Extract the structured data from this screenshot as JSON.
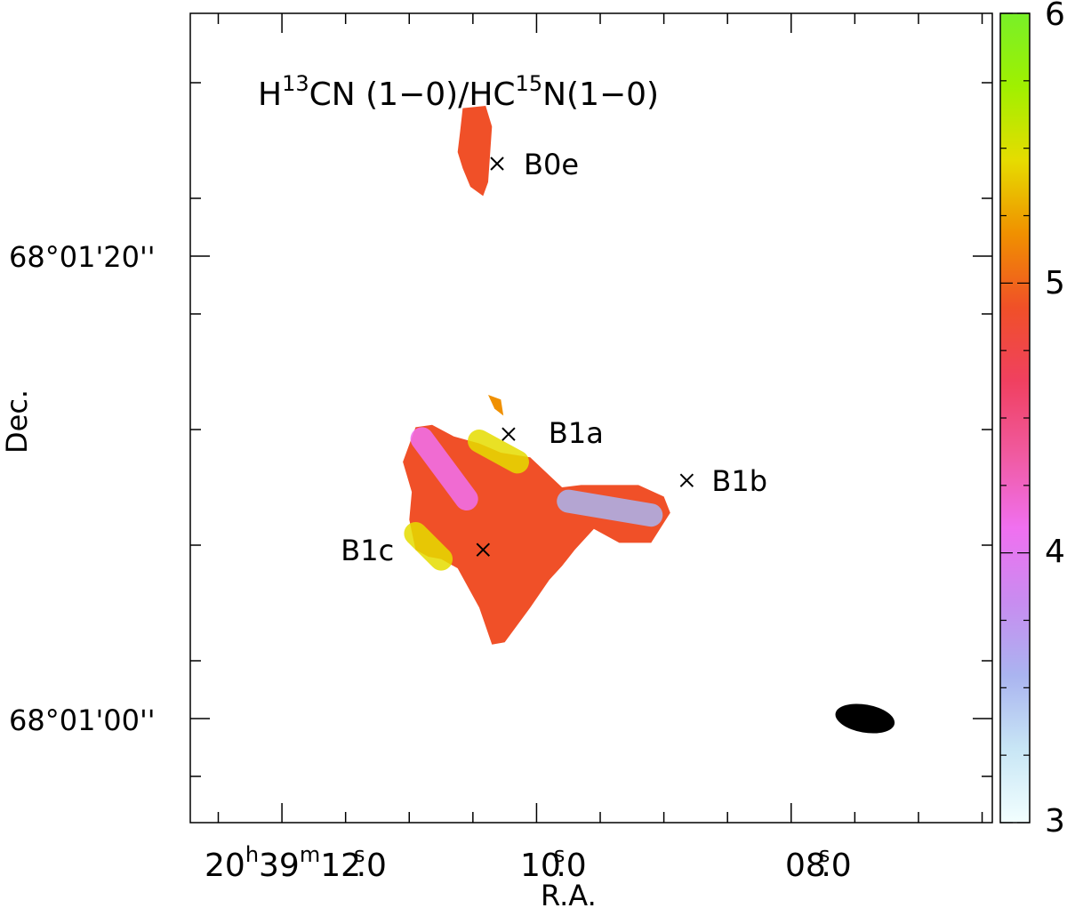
{
  "chart_data": {
    "type": "heatmap",
    "title_parts": {
      "a": "H",
      "a_sup": "13",
      "b": "CN (1−0)/HC",
      "b_sup": "15",
      "c": "N(1−0)"
    },
    "xlabel": "R.A.",
    "ylabel": "Dec.",
    "x_ticks": [
      {
        "value": "20h39m12.0s",
        "hour": "20",
        "hour_sup": "h",
        "min": "39",
        "min_sup": "m",
        "sec": "12",
        "sec_sup": "s",
        "frac": ".0"
      },
      {
        "value": "10.0s",
        "sec": "10",
        "sec_sup": "s",
        "frac": ".0"
      },
      {
        "value": "08.0s",
        "sec": "08",
        "sec_sup": "s",
        "frac": ".0"
      }
    ],
    "y_ticks": [
      {
        "label": "68°01'20''",
        "dec_arcsec": 20
      },
      {
        "label": "68°01'00''",
        "dec_arcsec": 0
      }
    ],
    "xlim_ra_sec": [
      12.72,
      6.42
    ],
    "ylim_dec_arcsec": [
      -4.5,
      30.5
    ],
    "colorbar": {
      "range": [
        3,
        6
      ],
      "tick_labels": [
        "3",
        "4",
        "5",
        "6"
      ],
      "colormap": [
        "#f2ffff",
        "#c8e6f5",
        "#aab4f0",
        "#c88cf0",
        "#f070f0",
        "#f05aa0",
        "#f04060",
        "#f05028",
        "#f09000",
        "#e6dc00",
        "#a0f000",
        "#78f028"
      ]
    },
    "sources": [
      {
        "name": "B0e",
        "ra_sec": 10.31,
        "dec_arcsec": 24.0
      },
      {
        "name": "B1a",
        "ra_sec": 10.22,
        "dec_arcsec": 12.3
      },
      {
        "name": "B1b",
        "ra_sec": 8.82,
        "dec_arcsec": 10.3
      },
      {
        "name": "B1c",
        "ra_sec": 10.42,
        "dec_arcsec": 7.3
      }
    ],
    "regions": [
      {
        "name": "B0e",
        "ratio": 4.9,
        "outline_ra_dec": [
          [
            10.58,
            26.4
          ],
          [
            10.4,
            26.5
          ],
          [
            10.35,
            25.6
          ],
          [
            10.38,
            23.2
          ],
          [
            10.42,
            22.6
          ],
          [
            10.52,
            23.0
          ],
          [
            10.58,
            23.8
          ],
          [
            10.62,
            24.5
          ],
          [
            10.6,
            25.4
          ]
        ]
      },
      {
        "name": "B1a-spur",
        "ratio": 5.3,
        "outline_ra_dec": [
          [
            10.38,
            14.0
          ],
          [
            10.28,
            13.8
          ],
          [
            10.26,
            13.1
          ],
          [
            10.33,
            13.4
          ]
        ]
      },
      {
        "name": "B1-main",
        "ratio": 4.8,
        "outline_ra_dec": [
          [
            10.95,
            12.6
          ],
          [
            10.82,
            12.7
          ],
          [
            10.65,
            12.2
          ],
          [
            10.45,
            11.9
          ],
          [
            10.28,
            11.5
          ],
          [
            10.05,
            11.3
          ],
          [
            9.8,
            10.0
          ],
          [
            9.65,
            10.1
          ],
          [
            9.35,
            10.1
          ],
          [
            9.2,
            10.1
          ],
          [
            9.0,
            9.6
          ],
          [
            8.95,
            8.9
          ],
          [
            9.1,
            7.6
          ],
          [
            9.35,
            7.6
          ],
          [
            9.55,
            8.2
          ],
          [
            9.7,
            7.3
          ],
          [
            9.8,
            6.6
          ],
          [
            9.9,
            6.0
          ],
          [
            10.05,
            4.8
          ],
          [
            10.25,
            3.3
          ],
          [
            10.35,
            3.2
          ],
          [
            10.45,
            4.8
          ],
          [
            10.62,
            6.5
          ],
          [
            10.75,
            6.9
          ],
          [
            10.85,
            7.0
          ],
          [
            10.95,
            7.3
          ],
          [
            11.0,
            8.6
          ],
          [
            10.98,
            9.8
          ],
          [
            11.05,
            11.1
          ]
        ]
      }
    ],
    "core_segments": [
      {
        "ratio": 4.2,
        "from": [
          10.9,
          12.1
        ],
        "to": [
          10.55,
          9.5
        ]
      },
      {
        "ratio": 3.6,
        "from": [
          9.75,
          9.4
        ],
        "to": [
          9.1,
          8.8
        ]
      },
      {
        "ratio": 5.5,
        "from": [
          10.45,
          12.0
        ],
        "to": [
          10.15,
          11.1
        ]
      },
      {
        "ratio": 5.4,
        "from": [
          10.95,
          8.0
        ],
        "to": [
          10.75,
          6.9
        ]
      }
    ],
    "beam": {
      "ra_sec": 7.42,
      "dec_arcsec": 0.0,
      "major_arcsec": 2.2,
      "minor_arcsec": 2.7,
      "angle_deg": 10,
      "color": "#000000"
    }
  }
}
